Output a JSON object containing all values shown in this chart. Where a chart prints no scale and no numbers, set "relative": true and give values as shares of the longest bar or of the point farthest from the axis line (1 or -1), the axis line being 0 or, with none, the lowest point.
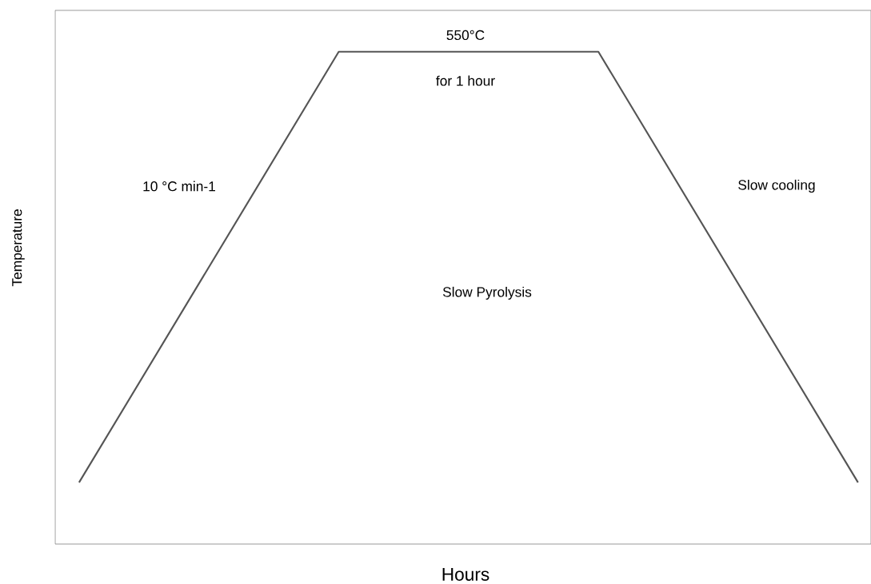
{
  "chart_data": {
    "type": "line",
    "relative": true,
    "xlabel": "Hours",
    "ylabel": "Temperature",
    "categories": [
      null,
      null,
      null,
      null
    ],
    "series": [
      {
        "color": "#555555",
        "values": [
          0,
          1,
          1,
          0
        ]
      }
    ],
    "marker": "none",
    "line_style": "solid",
    "annotations": [
      "550°C",
      "for 1 hour",
      "10 °C min-1",
      "Slow cooling",
      "Slow Pyrolysis"
    ]
  }
}
